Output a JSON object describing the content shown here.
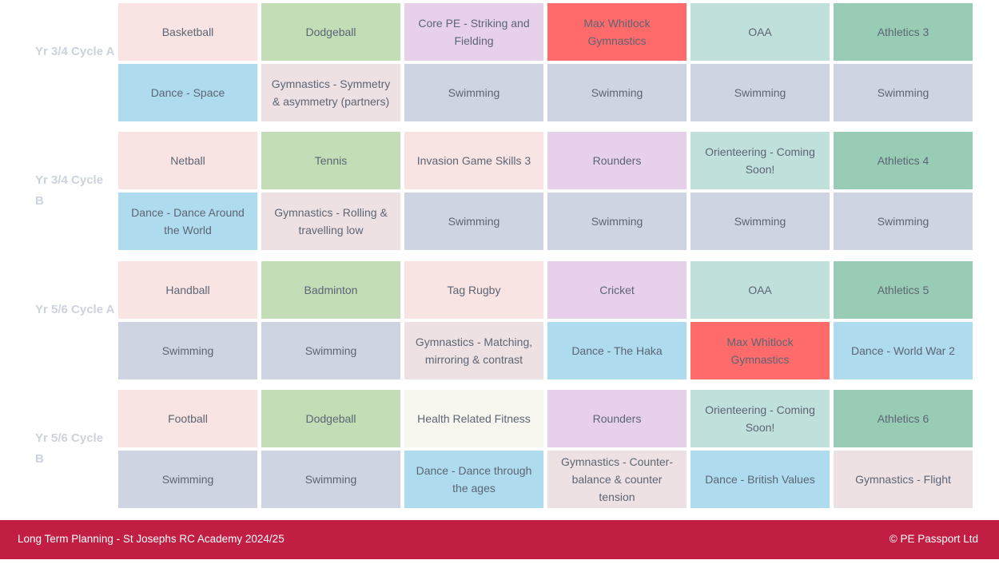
{
  "colors": {
    "pink": "#f8e4e2",
    "green": "#c3ddb7",
    "lavender": "#e6d0ea",
    "red": "#ff6b6b",
    "teal": "#c0e0dc",
    "darkgreen": "#99ccb4",
    "blue": "#aedcee",
    "gym": "#ede1e3",
    "swim": "#cfd4e2",
    "cream": "#f7f7f0"
  },
  "groups": [
    {
      "label": "Yr 3/4 Cycle A",
      "rows": [
        [
          {
            "t": "Basketball",
            "c": "pink"
          },
          {
            "t": "Dodgeball",
            "c": "green"
          },
          {
            "t": "Core PE - Striking and Fielding",
            "c": "lavender"
          },
          {
            "t": "Max Whitlock Gymnastics",
            "c": "red"
          },
          {
            "t": "OAA",
            "c": "teal"
          },
          {
            "t": "Athletics 3",
            "c": "darkgreen"
          }
        ],
        [
          {
            "t": "Dance - Space",
            "c": "blue"
          },
          {
            "t": "Gymnastics - Symmetry & asymmetry (partners)",
            "c": "gym"
          },
          {
            "t": "Swimming",
            "c": "swim"
          },
          {
            "t": "Swimming",
            "c": "swim"
          },
          {
            "t": "Swimming",
            "c": "swim"
          },
          {
            "t": "Swimming",
            "c": "swim"
          }
        ]
      ]
    },
    {
      "label": "Yr 3/4 Cycle B",
      "rows": [
        [
          {
            "t": "Netball",
            "c": "pink"
          },
          {
            "t": "Tennis",
            "c": "green"
          },
          {
            "t": "Invasion Game Skills 3",
            "c": "pink"
          },
          {
            "t": "Rounders",
            "c": "lavender"
          },
          {
            "t": "Orienteering - Coming Soon!",
            "c": "teal"
          },
          {
            "t": "Athletics 4",
            "c": "darkgreen"
          }
        ],
        [
          {
            "t": "Dance - Dance Around the World",
            "c": "blue"
          },
          {
            "t": "Gymnastics - Rolling & travelling low",
            "c": "gym"
          },
          {
            "t": "Swimming",
            "c": "swim"
          },
          {
            "t": "Swimming",
            "c": "swim"
          },
          {
            "t": "Swimming",
            "c": "swim"
          },
          {
            "t": "Swimming",
            "c": "swim"
          }
        ]
      ]
    },
    {
      "label": "Yr 5/6 Cycle A",
      "rows": [
        [
          {
            "t": "Handball",
            "c": "pink"
          },
          {
            "t": "Badminton",
            "c": "green"
          },
          {
            "t": "Tag Rugby",
            "c": "pink"
          },
          {
            "t": "Cricket",
            "c": "lavender"
          },
          {
            "t": "OAA",
            "c": "teal"
          },
          {
            "t": "Athletics 5",
            "c": "darkgreen"
          }
        ],
        [
          {
            "t": "Swimming",
            "c": "swim"
          },
          {
            "t": "Swimming",
            "c": "swim"
          },
          {
            "t": "Gymnastics - Matching, mirroring & contrast",
            "c": "gym"
          },
          {
            "t": "Dance - The Haka",
            "c": "blue"
          },
          {
            "t": "Max Whitlock Gymnastics",
            "c": "red"
          },
          {
            "t": "Dance - World War 2",
            "c": "blue"
          }
        ]
      ]
    },
    {
      "label": "Yr 5/6 Cycle B",
      "rows": [
        [
          {
            "t": "Football",
            "c": "pink"
          },
          {
            "t": "Dodgeball",
            "c": "green"
          },
          {
            "t": "Health Related Fitness",
            "c": "cream"
          },
          {
            "t": "Rounders",
            "c": "lavender"
          },
          {
            "t": "Orienteering - Coming Soon!",
            "c": "teal"
          },
          {
            "t": "Athletics 6",
            "c": "darkgreen"
          }
        ],
        [
          {
            "t": "Swimming",
            "c": "swim"
          },
          {
            "t": "Swimming",
            "c": "swim"
          },
          {
            "t": "Dance - Dance through the ages",
            "c": "blue"
          },
          {
            "t": "Gymnastics - Counter-balance & counter tension",
            "c": "gym"
          },
          {
            "t": "Dance - British Values",
            "c": "blue"
          },
          {
            "t": "Gymnastics - Flight",
            "c": "gym"
          }
        ]
      ]
    }
  ],
  "footer": {
    "left": "Long Term Planning - St Josephs RC Academy 2024/25",
    "right": "© PE Passport Ltd"
  }
}
